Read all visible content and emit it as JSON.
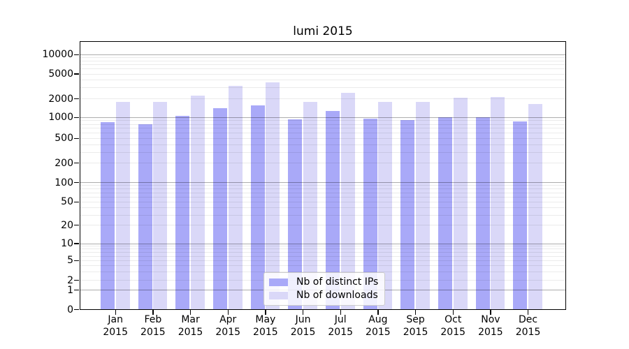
{
  "chart_data": {
    "type": "bar",
    "title": "lumi 2015",
    "months": [
      "Jan",
      "Feb",
      "Mar",
      "Apr",
      "May",
      "Jun",
      "Jul",
      "Aug",
      "Sep",
      "Oct",
      "Nov",
      "Dec"
    ],
    "year": "2015",
    "categories": [
      "Jan 2015",
      "Feb 2015",
      "Mar 2015",
      "Apr 2015",
      "May 2015",
      "Jun 2015",
      "Jul 2015",
      "Aug 2015",
      "Sep 2015",
      "Oct 2015",
      "Nov 2015",
      "Dec 2015"
    ],
    "series": [
      {
        "name": "Nb of distinct IPs",
        "color": "#a9a9f8",
        "values": [
          850,
          790,
          1060,
          1400,
          1550,
          930,
          1270,
          960,
          900,
          990,
          1000,
          860
        ]
      },
      {
        "name": "Nb of downloads",
        "color": "#dad8f8",
        "values": [
          1750,
          1750,
          2250,
          3200,
          3650,
          1750,
          2470,
          1750,
          1780,
          2050,
          2100,
          1650
        ]
      }
    ],
    "yscale": "symlog",
    "ylim": [
      0,
      16000
    ],
    "yticks": [
      0,
      1,
      2,
      5,
      10,
      20,
      50,
      100,
      200,
      500,
      1000,
      2000,
      5000,
      10000
    ],
    "grid": true,
    "legend_position": "lower-center",
    "xlabel": "",
    "ylabel": ""
  },
  "colors": {
    "major_grid": "rgba(0,0,0,0.32)",
    "minor_grid": "rgba(0,0,0,0.08)",
    "spine": "#000000",
    "legend_border": "#cccccc"
  }
}
